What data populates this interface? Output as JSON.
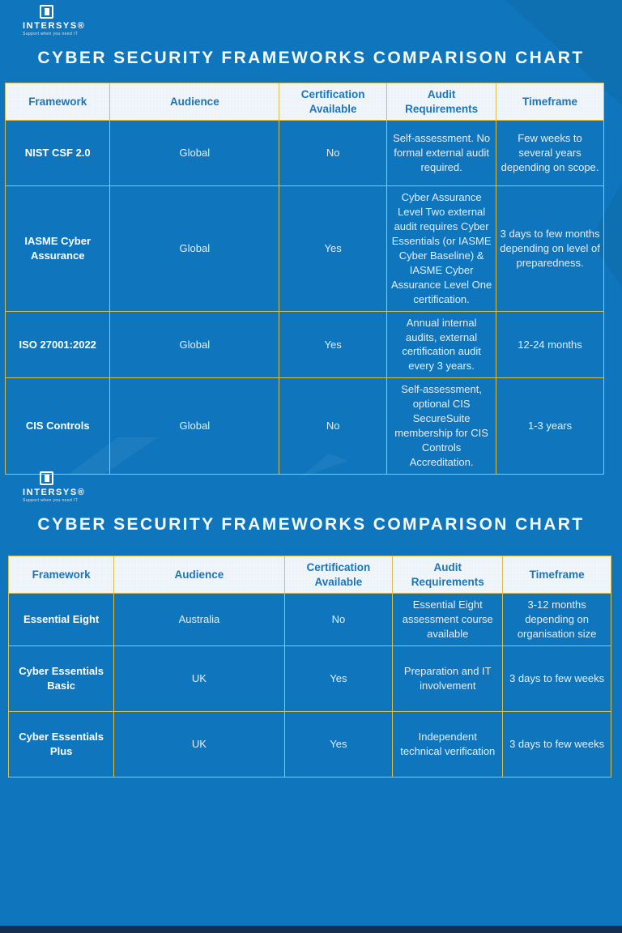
{
  "logo": {
    "brand": "INTERSYS®",
    "tagline": "Support when you need IT",
    "icon": "door-square-icon"
  },
  "colors": {
    "background_blue": "#0F76BD",
    "header_cell_bg": "#F0F5F9",
    "header_text_blue": "#1A75BC",
    "table_border_gold": "#D9BD4D",
    "body_text": "#E3EEF7",
    "framework_text": "#FFFFFF",
    "footer_bar_navy": "#14304E"
  },
  "sections": [
    {
      "title": "CYBER SECURITY FRAMEWORKS COMPARISON CHART",
      "headers": [
        "Framework",
        "Audience",
        "Certification Available",
        "Audit Requirements",
        "Timeframe"
      ],
      "rows": [
        [
          "NIST CSF 2.0",
          "Global",
          "No",
          "Self-assessment. No formal external audit required.",
          "Few weeks to several years depending on scope."
        ],
        [
          "IASME Cyber Assurance",
          "Global",
          "Yes",
          "Cyber Assurance Level Two external audit requires Cyber Essentials (or IASME Cyber Baseline) & IASME Cyber Assurance Level One certification.",
          "3 days to few months depending on level of preparedness."
        ],
        [
          "ISO 27001:2022",
          "Global",
          "Yes",
          "Annual internal audits, external certification audit every 3 years.",
          "12-24 months"
        ],
        [
          "CIS Controls",
          "Global",
          "No",
          "Self-assessment, optional CIS SecureSuite membership for CIS Controls Accreditation.",
          "1-3 years"
        ]
      ]
    },
    {
      "title": "CYBER SECURITY FRAMEWORKS COMPARISON CHART",
      "headers": [
        "Framework",
        "Audience",
        "Certification Available",
        "Audit Requirements",
        "Timeframe"
      ],
      "rows": [
        [
          "Essential Eight",
          "Australia",
          "No",
          "Essential Eight assessment course available",
          "3-12 months depending on organisation size"
        ],
        [
          "Cyber Essentials Basic",
          "UK",
          "Yes",
          "Preparation and IT involvement",
          "3 days to few weeks"
        ],
        [
          "Cyber Essentials Plus",
          "UK",
          "Yes",
          "Independent technical verification",
          "3 days to few weeks"
        ]
      ]
    }
  ]
}
